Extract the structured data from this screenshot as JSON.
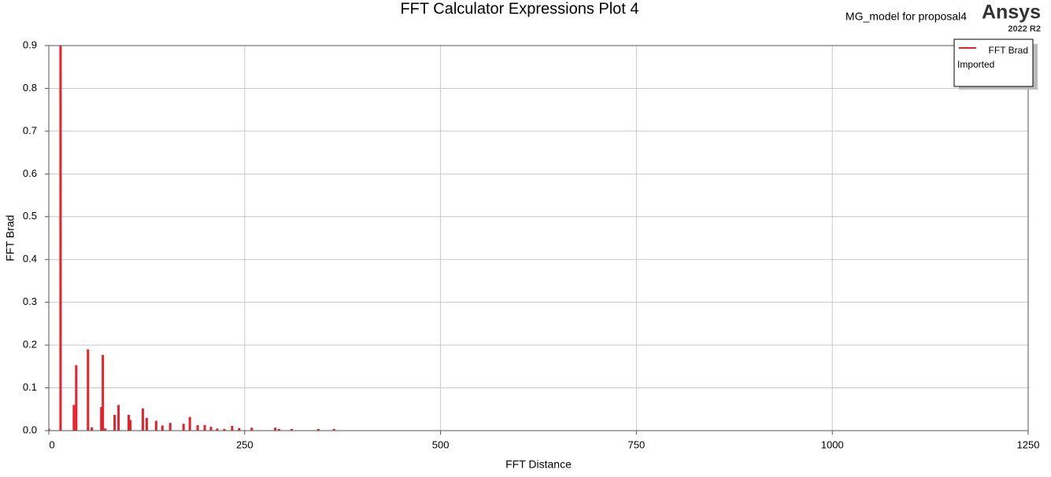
{
  "chart_data": {
    "type": "bar",
    "title": "FFT Calculator Expressions Plot 4",
    "subtitle": "MG_model for proposal4",
    "brand": "Ansys",
    "version": "2022 R2",
    "x_label": "FFT Distance",
    "y_label": "FFT Brad",
    "series": [
      {
        "name": "FFT Brad",
        "source": "Imported",
        "color": "#e8202a",
        "x": [
          0,
          15,
          32,
          35,
          50,
          55,
          67,
          69,
          72,
          84,
          89,
          102,
          104,
          120,
          125,
          137,
          145,
          155,
          172,
          180,
          190,
          199,
          207,
          215,
          224,
          234,
          243,
          259,
          289,
          294,
          310,
          344,
          364
        ],
        "values": [
          0.005,
          0.9,
          0.06,
          0.153,
          0.19,
          0.008,
          0.055,
          0.177,
          0.005,
          0.037,
          0.06,
          0.037,
          0.025,
          0.052,
          0.03,
          0.023,
          0.012,
          0.018,
          0.016,
          0.032,
          0.013,
          0.013,
          0.009,
          0.005,
          0.004,
          0.011,
          0.006,
          0.007,
          0.007,
          0.004,
          0.004,
          0.004,
          0.004
        ]
      }
    ],
    "xlim": [
      0,
      1250
    ],
    "xticks": [
      0,
      250,
      500,
      750,
      1000,
      1250
    ],
    "ylim": [
      0,
      0.9
    ],
    "yticks": [
      {
        "value": 0,
        "label": "0.0"
      },
      0.1,
      0.2,
      0.3,
      0.4,
      0.5,
      0.6,
      0.7,
      0.8,
      0.9
    ],
    "grid": true,
    "legend": "top-right"
  }
}
